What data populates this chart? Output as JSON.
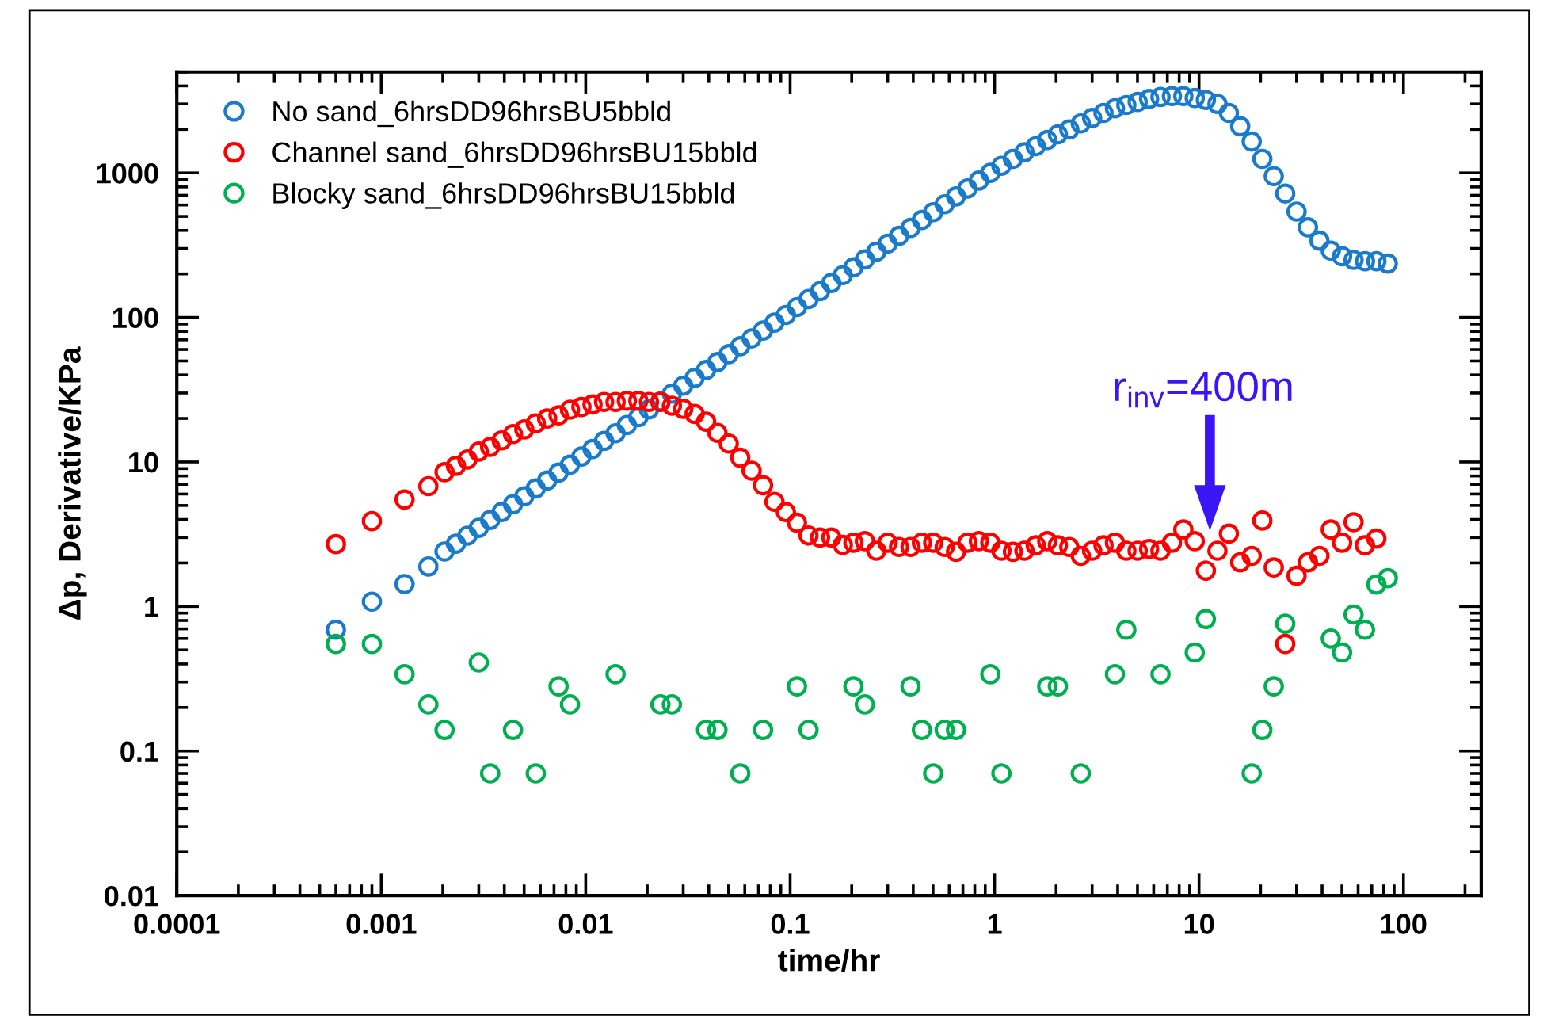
{
  "chart_data": {
    "type": "scatter",
    "xlabel": "time/hr",
    "ylabel": "Δp, Derivative/KPa",
    "log": "xy",
    "marker": "circle",
    "legend": "top left",
    "grid": false,
    "xlim": [
      0.0001,
      240
    ],
    "ylim": [
      0.01,
      5000
    ],
    "xticks": [
      0.0001,
      0.001,
      0.01,
      0.1,
      1,
      10,
      100
    ],
    "yticks": [
      0.01,
      0.1,
      1,
      10,
      100,
      1000
    ],
    "x": [
      0.0006,
      0.0009,
      0.0013,
      0.0017,
      0.00204,
      0.00232,
      0.00264,
      0.003,
      0.00341,
      0.00388,
      0.00441,
      0.00501,
      0.0057,
      0.00648,
      0.00737,
      0.00838,
      0.00953,
      0.0108,
      0.0123,
      0.014,
      0.0159,
      0.0181,
      0.0204,
      0.0232,
      0.0264,
      0.03,
      0.0341,
      0.0388,
      0.0441,
      0.0501,
      0.057,
      0.0648,
      0.0737,
      0.0838,
      0.0953,
      0.108,
      0.123,
      0.14,
      0.159,
      0.181,
      0.204,
      0.232,
      0.264,
      0.3,
      0.341,
      0.388,
      0.441,
      0.501,
      0.57,
      0.648,
      0.737,
      0.838,
      0.953,
      1.08,
      1.23,
      1.4,
      1.59,
      1.81,
      2.04,
      2.32,
      2.64,
      3.0,
      3.41,
      3.88,
      4.41,
      5.01,
      5.7,
      6.48,
      7.37,
      8.38,
      9.53,
      10.8,
      12.3,
      14.0,
      15.9,
      18.1,
      20.4,
      23.2,
      26.4,
      30.0,
      34.1,
      38.8,
      44.1,
      50.1,
      57.0,
      64.8,
      73.7,
      83.8
    ],
    "series": [
      {
        "name": "No sand_6hrsDD96hrsBU5bbld",
        "color": "#1a7acb",
        "values": [
          0.69,
          1.08,
          1.43,
          1.89,
          2.4,
          2.72,
          3.09,
          3.5,
          3.97,
          4.5,
          5.1,
          5.79,
          6.56,
          7.44,
          8.44,
          9.57,
          10.9,
          12.3,
          14.0,
          15.8,
          18.0,
          20.4,
          23.1,
          26.2,
          29.7,
          33.7,
          38.2,
          43.3,
          49.1,
          55.7,
          63.2,
          71.6,
          81.2,
          92.1,
          104,
          118,
          134,
          152,
          173,
          196,
          222,
          252,
          285,
          324,
          367,
          416,
          472,
          535,
          607,
          688,
          780,
          885,
          1000,
          1120,
          1250,
          1390,
          1530,
          1690,
          1850,
          2000,
          2200,
          2400,
          2600,
          2800,
          2950,
          3100,
          3250,
          3350,
          3400,
          3400,
          3300,
          3200,
          3000,
          2600,
          2100,
          1650,
          1250,
          950,
          720,
          540,
          420,
          340,
          290,
          265,
          250,
          245,
          245,
          236
        ]
      },
      {
        "name": "Channel sand_6hrsDD96hrsBU15bbld",
        "color": "#ff0000",
        "values": [
          2.7,
          3.9,
          5.5,
          6.8,
          8.5,
          9.4,
          10.4,
          11.8,
          12.7,
          14.1,
          15.6,
          16.8,
          18.5,
          20,
          21,
          23,
          24,
          25,
          26,
          26,
          26.5,
          26.5,
          26,
          26,
          24.5,
          23.3,
          21.5,
          19,
          15.9,
          13.4,
          10.7,
          8.7,
          6.9,
          5.3,
          4.5,
          3.8,
          3.1,
          3.0,
          3.0,
          2.67,
          2.76,
          2.83,
          2.43,
          2.76,
          2.58,
          2.58,
          2.76,
          2.76,
          2.58,
          2.39,
          2.76,
          2.83,
          2.76,
          2.43,
          2.39,
          2.43,
          2.65,
          2.83,
          2.65,
          2.58,
          2.24,
          2.43,
          2.65,
          2.76,
          2.43,
          2.43,
          2.5,
          2.43,
          2.76,
          3.41,
          2.83,
          1.77,
          2.43,
          3.19,
          2.02,
          2.24,
          3.93,
          1.86,
          0.55,
          1.63,
          2.02,
          2.24,
          3.41,
          2.76,
          3.83,
          2.65,
          2.95,
          null
        ]
      },
      {
        "name": "Blocky sand_6hrsDD96hrsBU15bbld",
        "color": "#00b050",
        "x": [
          0.0006,
          0.0009,
          0.0013,
          0.0017,
          0.00204,
          0.003,
          0.00341,
          0.00441,
          0.0057,
          0.00737,
          0.00838,
          0.014,
          0.0232,
          0.0264,
          0.0388,
          0.0441,
          0.057,
          0.0737,
          0.108,
          0.123,
          0.204,
          0.232,
          0.388,
          0.441,
          0.501,
          0.57,
          0.648,
          0.953,
          1.08,
          1.81,
          2.04,
          2.64,
          3.88,
          4.41,
          6.48,
          9.53,
          10.8,
          18.1,
          20.4,
          23.2,
          26.4,
          44.1,
          50.1,
          57.0,
          64.8,
          73.7,
          83.8
        ],
        "values": [
          0.55,
          0.55,
          0.34,
          0.21,
          0.14,
          0.41,
          0.07,
          0.14,
          0.07,
          0.28,
          0.21,
          0.34,
          0.21,
          0.21,
          0.14,
          0.14,
          0.07,
          0.14,
          0.28,
          0.14,
          0.28,
          0.21,
          0.28,
          0.14,
          0.07,
          0.14,
          0.14,
          0.34,
          0.07,
          0.28,
          0.28,
          0.07,
          0.34,
          0.69,
          0.34,
          0.48,
          0.82,
          0.07,
          0.14,
          0.28,
          0.76,
          0.6,
          0.48,
          0.88,
          0.69,
          1.42,
          1.57
        ]
      }
    ],
    "annotations": [
      "r$_{inv}$=400m"
    ]
  }
}
